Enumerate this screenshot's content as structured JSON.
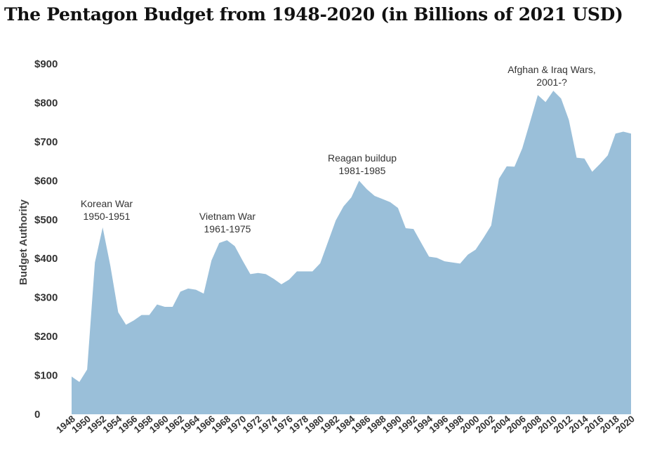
{
  "chart_data": {
    "type": "area",
    "title": "The Pentagon Budget from 1948-2020 (in Billions of 2021 USD)",
    "xlabel": "",
    "ylabel": "Budget Authority",
    "ylim": [
      0,
      900
    ],
    "xlim": [
      1948,
      2020
    ],
    "color": "#9ABFD9",
    "y_ticks": [
      {
        "value": 0,
        "label": "0"
      },
      {
        "value": 100,
        "label": "$100"
      },
      {
        "value": 200,
        "label": "$200"
      },
      {
        "value": 300,
        "label": "$300"
      },
      {
        "value": 400,
        "label": "$400"
      },
      {
        "value": 500,
        "label": "$500"
      },
      {
        "value": 600,
        "label": "$600"
      },
      {
        "value": 700,
        "label": "$700"
      },
      {
        "value": 800,
        "label": "$800"
      },
      {
        "value": 900,
        "label": "$900"
      }
    ],
    "x_ticks": [
      "1948",
      "1950",
      "1952",
      "1954",
      "1956",
      "1958",
      "1960",
      "1962",
      "1964",
      "1966",
      "1968",
      "1970",
      "1972",
      "1974",
      "1976",
      "1978",
      "1980",
      "1982",
      "1984",
      "1986",
      "1988",
      "1990",
      "1992",
      "1994",
      "1996",
      "1998",
      "2000",
      "2002",
      "2004",
      "2006",
      "2008",
      "2010",
      "2012",
      "2014",
      "2016",
      "2018",
      "2020"
    ],
    "x": [
      1948,
      1949,
      1950,
      1951,
      1952,
      1953,
      1954,
      1955,
      1956,
      1957,
      1958,
      1959,
      1960,
      1961,
      1962,
      1963,
      1964,
      1965,
      1966,
      1967,
      1968,
      1969,
      1970,
      1971,
      1972,
      1973,
      1974,
      1975,
      1976,
      1977,
      1978,
      1979,
      1980,
      1981,
      1982,
      1983,
      1984,
      1985,
      1986,
      1987,
      1988,
      1989,
      1990,
      1991,
      1992,
      1993,
      1994,
      1995,
      1996,
      1997,
      1998,
      1999,
      2000,
      2001,
      2002,
      2003,
      2004,
      2005,
      2006,
      2007,
      2008,
      2009,
      2010,
      2011,
      2012,
      2013,
      2014,
      2015,
      2016,
      2017,
      2018,
      2019,
      2020
    ],
    "values": [
      97,
      83,
      115,
      390,
      480,
      380,
      262,
      230,
      241,
      255,
      255,
      282,
      276,
      276,
      315,
      323,
      320,
      310,
      395,
      440,
      447,
      432,
      395,
      360,
      363,
      360,
      348,
      334,
      346,
      367,
      367,
      367,
      388,
      443,
      498,
      534,
      557,
      600,
      578,
      561,
      553,
      545,
      530,
      478,
      476,
      440,
      405,
      402,
      393,
      390,
      387,
      410,
      423,
      453,
      485,
      605,
      637,
      636,
      683,
      751,
      820,
      802,
      831,
      811,
      756,
      659,
      657,
      623,
      643,
      665,
      721,
      726,
      721
    ],
    "annotations": [
      {
        "line1": "Korean War",
        "line2": "1950-1951",
        "year": 1952
      },
      {
        "line1": "Vietnam  War",
        "line2": "1961-1975",
        "year": 1968
      },
      {
        "line1": "Reagan buildup",
        "line2": "1981-1985",
        "year": 1985
      },
      {
        "line1": "Afghan & Iraq Wars,",
        "line2": "2001-?",
        "year": 2010
      }
    ]
  }
}
